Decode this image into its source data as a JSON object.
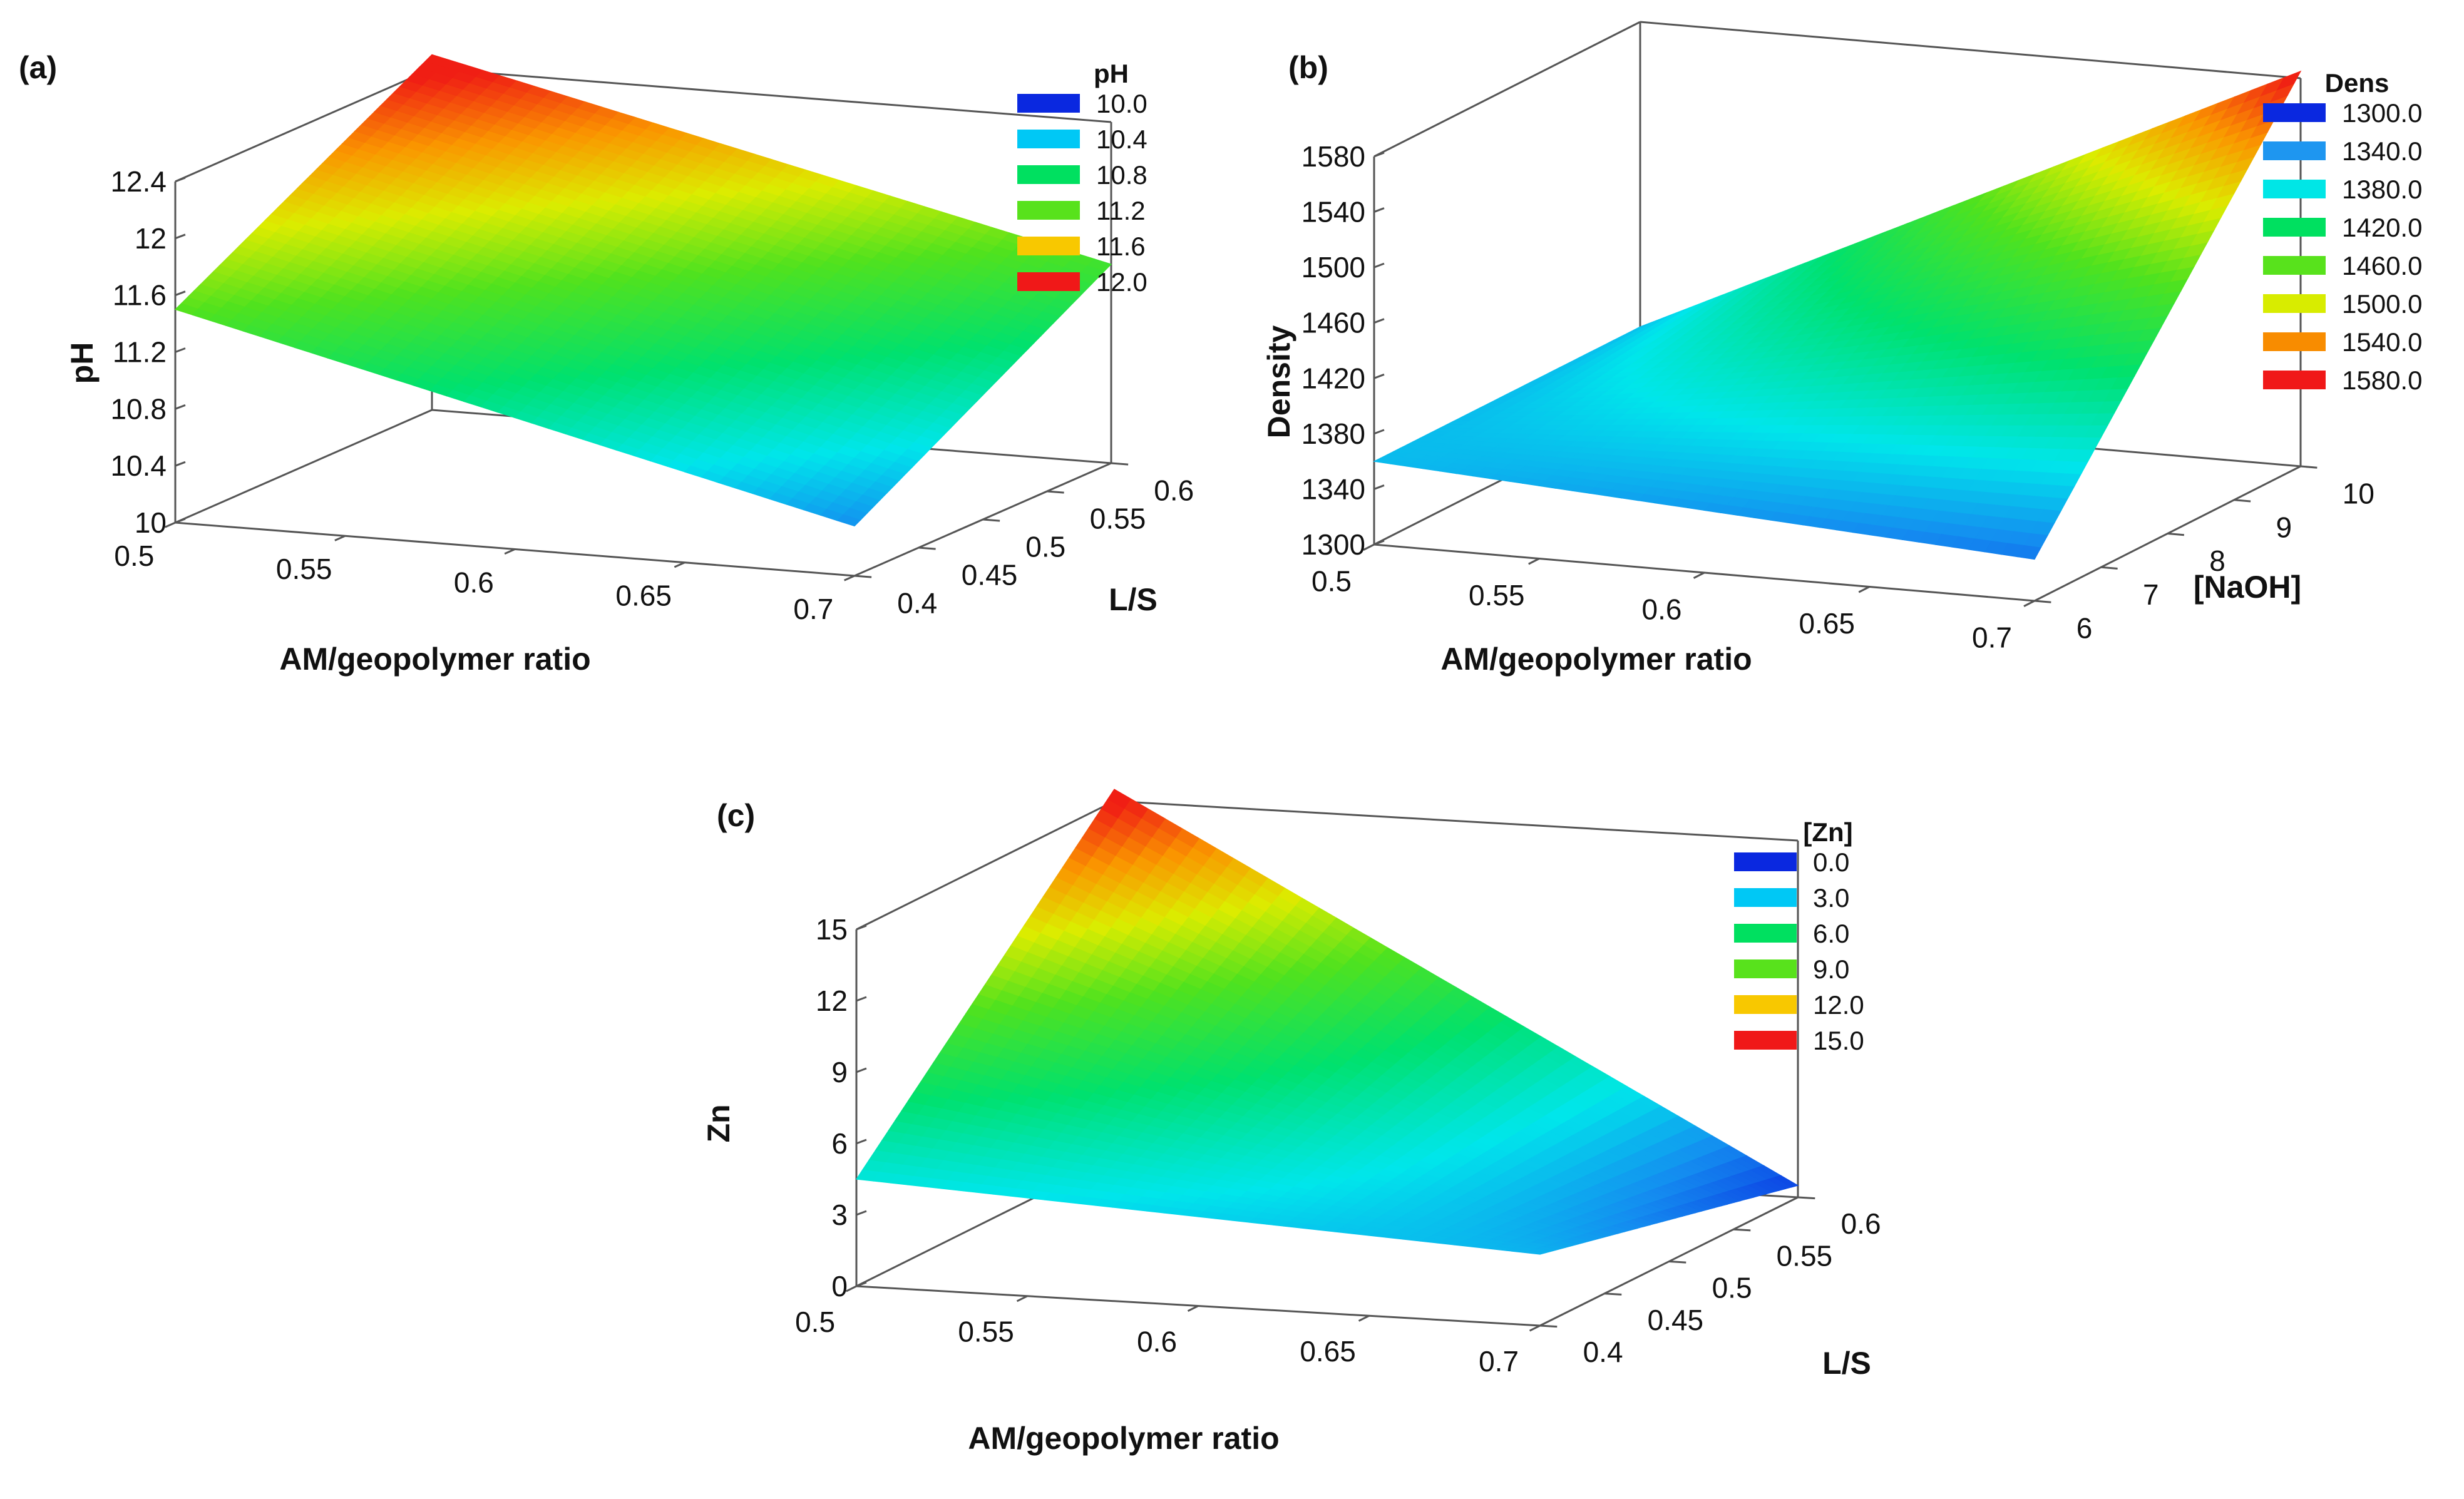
{
  "chart_data": [
    {
      "type": "surface3d",
      "panel_label": "(a)",
      "x_label": "AM/geopolymer ratio",
      "y_label": "L/S",
      "z_label": "pH",
      "x_ticks": [
        "0.5",
        "0.55",
        "0.6",
        "0.65",
        "0.7"
      ],
      "y_ticks": [
        "0.4",
        "0.45",
        "0.5",
        "0.55",
        "0.6"
      ],
      "z_ticks": [
        "10",
        "10.4",
        "10.8",
        "11.2",
        "11.6",
        "12",
        "12.4"
      ],
      "xlim": [
        0.5,
        0.7
      ],
      "ylim": [
        0.4,
        0.6
      ],
      "zlim": [
        10.0,
        12.4
      ],
      "surface_corners": [
        {
          "x": 0.5,
          "y": 0.4,
          "z": 11.5
        },
        {
          "x": 0.7,
          "y": 0.4,
          "z": 10.35
        },
        {
          "x": 0.7,
          "y": 0.6,
          "z": 11.4
        },
        {
          "x": 0.5,
          "y": 0.6,
          "z": 12.5
        }
      ],
      "legend": {
        "title": "pH",
        "entries": [
          {
            "label": "10.0",
            "color": "#0a28e0"
          },
          {
            "label": "10.4",
            "color": "#00c8f5"
          },
          {
            "label": "10.8",
            "color": "#00e060"
          },
          {
            "label": "11.2",
            "color": "#58e21c"
          },
          {
            "label": "11.6",
            "color": "#f8c800"
          },
          {
            "label": "12.0",
            "color": "#f01818"
          }
        ]
      }
    },
    {
      "type": "surface3d",
      "panel_label": "(b)",
      "x_label": "AM/geopolymer ratio",
      "y_label": "[NaOH]",
      "z_label": "Density",
      "x_ticks": [
        "0.5",
        "0.55",
        "0.6",
        "0.65",
        "0.7"
      ],
      "y_ticks": [
        "6",
        "7",
        "8",
        "9",
        "10"
      ],
      "z_ticks": [
        "1300",
        "1340",
        "1380",
        "1420",
        "1460",
        "1500",
        "1540",
        "1580"
      ],
      "xlim": [
        0.5,
        0.7
      ],
      "ylim": [
        6,
        10
      ],
      "zlim": [
        1300,
        1580
      ],
      "surface_corners": [
        {
          "x": 0.5,
          "y": 6,
          "z": 1360
        },
        {
          "x": 0.7,
          "y": 6,
          "z": 1330
        },
        {
          "x": 0.7,
          "y": 10,
          "z": 1585
        },
        {
          "x": 0.5,
          "y": 10,
          "z": 1360
        }
      ],
      "legend": {
        "title": "Dens",
        "entries": [
          {
            "label": "1300.0",
            "color": "#0a28e0"
          },
          {
            "label": "1340.0",
            "color": "#1e96f0"
          },
          {
            "label": "1380.0",
            "color": "#00e6e6"
          },
          {
            "label": "1420.0",
            "color": "#00e060"
          },
          {
            "label": "1460.0",
            "color": "#58e21c"
          },
          {
            "label": "1500.0",
            "color": "#d8ec00"
          },
          {
            "label": "1540.0",
            "color": "#f88c00"
          },
          {
            "label": "1580.0",
            "color": "#f01818"
          }
        ]
      }
    },
    {
      "type": "surface3d",
      "panel_label": "(c)",
      "x_label": "AM/geopolymer ratio",
      "y_label": "L/S",
      "z_label": "Zn",
      "x_ticks": [
        "0.5",
        "0.55",
        "0.6",
        "0.65",
        "0.7"
      ],
      "y_ticks": [
        "0.4",
        "0.45",
        "0.5",
        "0.55",
        "0.6"
      ],
      "z_ticks": [
        "0",
        "3",
        "6",
        "9",
        "12",
        "15"
      ],
      "xlim": [
        0.5,
        0.7
      ],
      "ylim": [
        0.4,
        0.6
      ],
      "zlim": [
        0,
        15
      ],
      "surface_corners": [
        {
          "x": 0.5,
          "y": 0.4,
          "z": 4.5
        },
        {
          "x": 0.7,
          "y": 0.4,
          "z": 3.0
        },
        {
          "x": 0.7,
          "y": 0.6,
          "z": 0.5
        },
        {
          "x": 0.5,
          "y": 0.6,
          "z": 15.5
        }
      ],
      "legend": {
        "title": "[Zn]",
        "entries": [
          {
            "label": "0.0",
            "color": "#0a28e0"
          },
          {
            "label": "3.0",
            "color": "#00c8f5"
          },
          {
            "label": "6.0",
            "color": "#00e060"
          },
          {
            "label": "9.0",
            "color": "#58e21c"
          },
          {
            "label": "12.0",
            "color": "#f8c800"
          },
          {
            "label": "15.0",
            "color": "#f01818"
          }
        ]
      }
    }
  ]
}
